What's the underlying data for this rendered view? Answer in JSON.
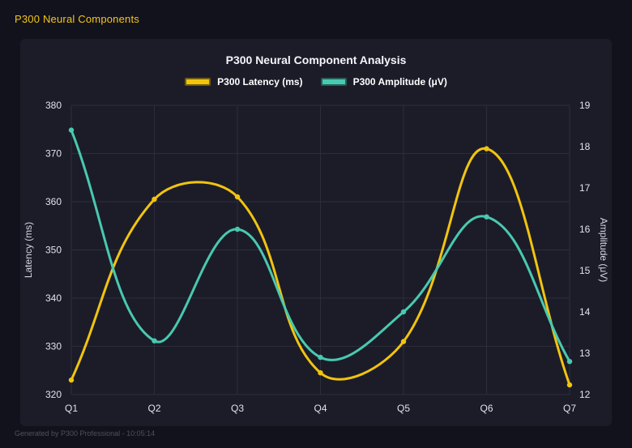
{
  "header": {
    "title": "P300 Neural Components"
  },
  "footer": {
    "note": "Generated by P300 Professional - 10:05:14"
  },
  "colors": {
    "page_bg": "#12121c",
    "panel_bg": "#1c1c29",
    "grid": "#2c2c3c",
    "title_text": "#f5f5fa",
    "tick_text": "#e2e2ea",
    "axis_label_text": "#d6d6e0",
    "header_text": "#f5c518",
    "footer_text": "#50505c"
  },
  "chart_data": {
    "type": "line",
    "title": "P300 Neural Component Analysis",
    "categories": [
      "Q1",
      "Q2",
      "Q3",
      "Q4",
      "Q5",
      "Q6",
      "Q7"
    ],
    "series": [
      {
        "name": "P300 Latency (ms)",
        "axis": "left",
        "color": "#f1c40f",
        "values": [
          323,
          360.5,
          361,
          324.5,
          331,
          371,
          322
        ]
      },
      {
        "name": "P300 Amplitude (μV)",
        "axis": "right",
        "color": "#48c9b0",
        "values": [
          18.4,
          13.3,
          16.0,
          12.9,
          14.0,
          16.3,
          12.8
        ]
      }
    ],
    "left_axis": {
      "label": "Latency (ms)",
      "min": 320,
      "max": 380,
      "step": 10
    },
    "right_axis": {
      "label": "Amplitude (μV)",
      "min": 12,
      "max": 19,
      "step": 1
    },
    "grid": true,
    "legend_position": "top",
    "curve": "smooth"
  }
}
